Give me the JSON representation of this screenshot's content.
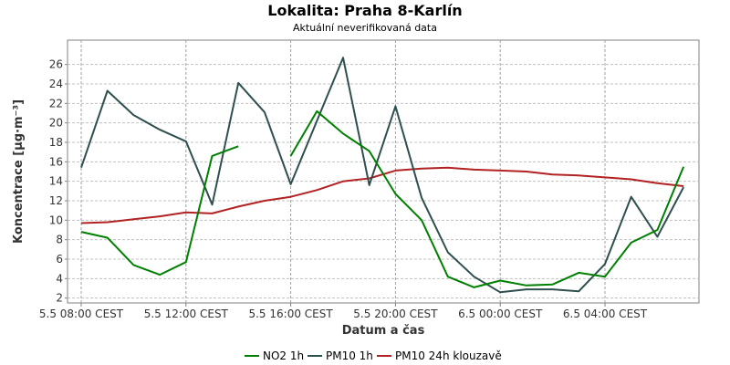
{
  "chart_data": {
    "type": "line",
    "title": "Lokalita: Praha 8-Karlín",
    "subtitle": "Aktuální neverifikovaná data",
    "xlabel": "Datum a čas",
    "ylabel": "Koncentrace [µg·m⁻³]",
    "ylim": [
      1.5,
      28.5
    ],
    "yticks": [
      2,
      4,
      6,
      8,
      10,
      12,
      14,
      16,
      18,
      20,
      22,
      24,
      26
    ],
    "x": [
      "5.5 08:00",
      "5.5 09:00",
      "5.5 10:00",
      "5.5 11:00",
      "5.5 12:00",
      "5.5 13:00",
      "5.5 14:00",
      "5.5 15:00",
      "5.5 16:00",
      "5.5 17:00",
      "5.5 18:00",
      "5.5 19:00",
      "5.5 20:00",
      "5.5 21:00",
      "5.5 22:00",
      "5.5 23:00",
      "6.5 00:00",
      "6.5 01:00",
      "6.5 02:00",
      "6.5 03:00",
      "6.5 04:00",
      "6.5 05:00",
      "6.5 06:00",
      "6.5 07:00"
    ],
    "xticks": [
      {
        "index": 0,
        "label": "5.5 08:00 CEST"
      },
      {
        "index": 4,
        "label": "5.5 12:00 CEST"
      },
      {
        "index": 8,
        "label": "5.5 16:00 CEST"
      },
      {
        "index": 12,
        "label": "5.5 20:00 CEST"
      },
      {
        "index": 16,
        "label": "6.5 00:00 CEST"
      },
      {
        "index": 20,
        "label": "6.5 04:00 CEST"
      }
    ],
    "grid": true,
    "legend_position": "bottom",
    "series": [
      {
        "name": "NO2 1h",
        "color": "#008000",
        "values": [
          8.8,
          8.2,
          5.4,
          4.4,
          5.7,
          16.6,
          17.6,
          null,
          16.6,
          21.2,
          18.9,
          17.1,
          12.7,
          10.0,
          4.2,
          3.1,
          3.8,
          3.3,
          3.4,
          4.6,
          4.2,
          7.7,
          9.0,
          15.5
        ]
      },
      {
        "name": "PM10 1h",
        "color": "#2f4f4f",
        "values": [
          15.4,
          23.3,
          20.8,
          19.3,
          18.1,
          11.6,
          24.1,
          21.1,
          13.7,
          20.2,
          26.7,
          13.6,
          21.7,
          12.3,
          6.7,
          4.2,
          2.6,
          2.9,
          2.9,
          2.7,
          5.5,
          12.4,
          8.3,
          13.4
        ]
      },
      {
        "name": "PM10 24h klouzavě",
        "color": "#b22222",
        "values": [
          9.7,
          9.8,
          10.1,
          10.4,
          10.8,
          10.7,
          11.4,
          12.0,
          12.4,
          13.1,
          14.0,
          14.3,
          15.1,
          15.3,
          15.4,
          15.2,
          15.1,
          15.0,
          14.7,
          14.6,
          14.4,
          14.2,
          13.8,
          13.5
        ]
      }
    ]
  }
}
